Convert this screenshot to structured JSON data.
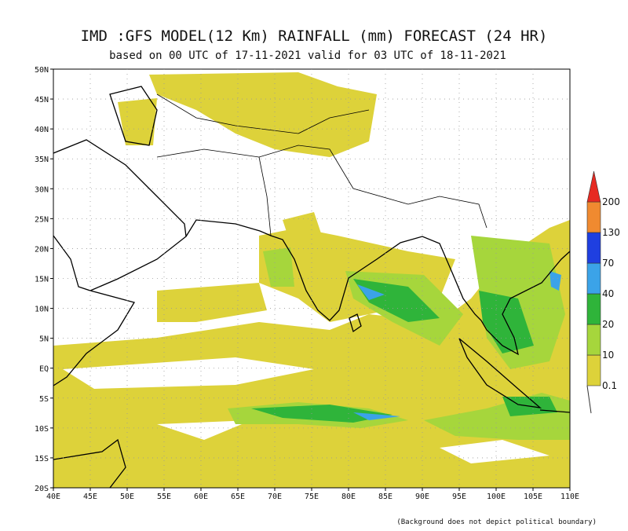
{
  "header": {
    "title": "IMD :GFS MODEL(12 Km) RAINFALL (mm) FORECAST (24 HR)",
    "subtitle": "based on 00 UTC of 17-11-2021 valid for 03 UTC of 18-11-2021"
  },
  "map": {
    "lon_ticks": [
      {
        "value": 40,
        "label": "40E"
      },
      {
        "value": 45,
        "label": "45E"
      },
      {
        "value": 50,
        "label": "50E"
      },
      {
        "value": 55,
        "label": "55E"
      },
      {
        "value": 60,
        "label": "60E"
      },
      {
        "value": 65,
        "label": "65E"
      },
      {
        "value": 70,
        "label": "70E"
      },
      {
        "value": 75,
        "label": "75E"
      },
      {
        "value": 80,
        "label": "80E"
      },
      {
        "value": 85,
        "label": "85E"
      },
      {
        "value": 90,
        "label": "90E"
      },
      {
        "value": 95,
        "label": "95E"
      },
      {
        "value": 100,
        "label": "100E"
      },
      {
        "value": 105,
        "label": "105E"
      },
      {
        "value": 110,
        "label": "110E"
      }
    ],
    "lat_ticks": [
      {
        "value": 50,
        "label": "50N"
      },
      {
        "value": 45,
        "label": "45N"
      },
      {
        "value": 40,
        "label": "40N"
      },
      {
        "value": 35,
        "label": "35N"
      },
      {
        "value": 30,
        "label": "30N"
      },
      {
        "value": 25,
        "label": "25N"
      },
      {
        "value": 20,
        "label": "20N"
      },
      {
        "value": 15,
        "label": "15N"
      },
      {
        "value": 10,
        "label": "10N"
      },
      {
        "value": 5,
        "label": "5N"
      },
      {
        "value": 0,
        "label": "EQ"
      },
      {
        "value": -5,
        "label": "5S"
      },
      {
        "value": -10,
        "label": "10S"
      },
      {
        "value": -15,
        "label": "15S"
      },
      {
        "value": -20,
        "label": "20S"
      }
    ]
  },
  "colorbar": {
    "labels": [
      "0.1",
      "10",
      "20",
      "40",
      "70",
      "130",
      "200"
    ],
    "colors": [
      "#ddd23a",
      "#a6d63c",
      "#2fb43a",
      "#3ba3e8",
      "#1f3fe0",
      "#f08a30",
      "#e62a22"
    ]
  },
  "footnote": "(Background does not depict political boundary)"
}
